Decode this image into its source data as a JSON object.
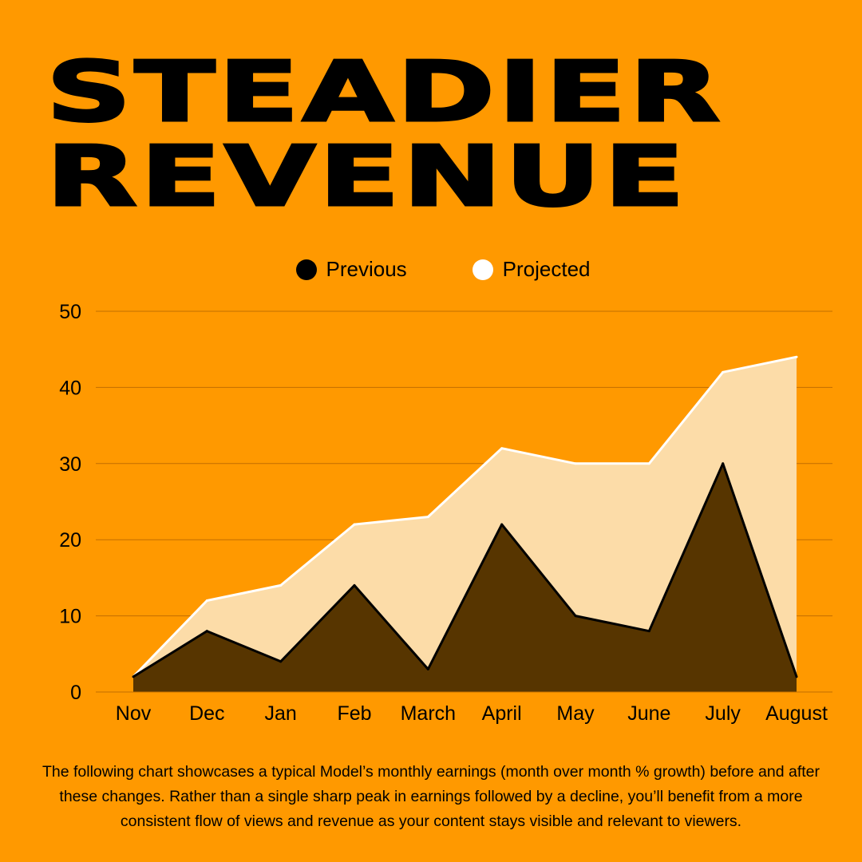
{
  "title_lines": [
    "STEADIER",
    "REVENUE"
  ],
  "caption": "The following chart showcases a typical Model’s monthly earnings (month over month % growth) before and after these changes. Rather than a single sharp peak in earnings followed by a decline, you’ll benefit from a more consistent flow of views and revenue as your content stays visible and relevant to viewers.",
  "colors": {
    "background": "#FF9900",
    "previous_fill": "#573500",
    "previous_line": "#000000",
    "projected_fill": "#FCDCA8",
    "projected_line": "#FFFFFF",
    "grid": "#C26E00"
  },
  "chart_data": {
    "type": "area",
    "categories": [
      "Nov",
      "Dec",
      "Jan",
      "Feb",
      "March",
      "April",
      "May",
      "June",
      "July",
      "August"
    ],
    "series": [
      {
        "name": "Previous",
        "values": [
          2,
          8,
          4,
          14,
          3,
          22,
          10,
          8,
          30,
          2
        ]
      },
      {
        "name": "Projected",
        "values": [
          2,
          12,
          14,
          22,
          23,
          32,
          30,
          30,
          42,
          44
        ]
      }
    ],
    "yticks": [
      0,
      10,
      20,
      30,
      40,
      50
    ],
    "ylim": [
      0,
      50
    ],
    "grid": true,
    "legend": "top-center"
  }
}
